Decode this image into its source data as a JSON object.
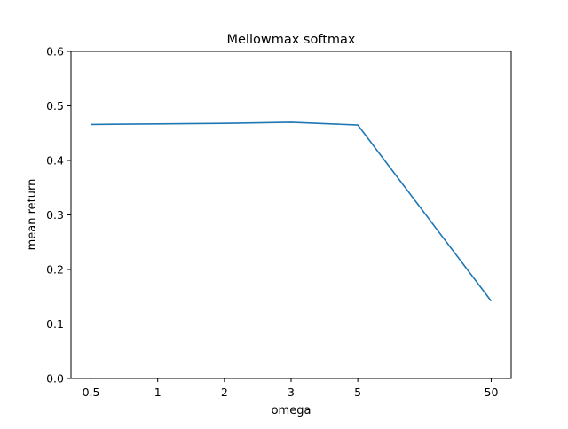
{
  "chart_data": {
    "type": "line",
    "title": "Mellowmax softmax",
    "xlabel": "omega",
    "ylabel": "mean return",
    "x": [
      "0.5",
      "1",
      "2",
      "3",
      "5",
      "50"
    ],
    "x_positions": [
      0,
      1,
      2,
      3,
      4,
      6
    ],
    "xlim": [
      -0.3,
      6.3
    ],
    "series": [
      {
        "values": [
          0.466,
          0.467,
          0.468,
          0.47,
          0.465,
          0.142
        ],
        "color": "#1f77b4"
      }
    ],
    "ylim": [
      0.0,
      0.6
    ],
    "yticks": [
      "0.0",
      "0.1",
      "0.2",
      "0.3",
      "0.4",
      "0.5",
      "0.6"
    ],
    "ytick_values": [
      0.0,
      0.1,
      0.2,
      0.3,
      0.4,
      0.5,
      0.6
    ],
    "grid": false,
    "legend": "none"
  }
}
